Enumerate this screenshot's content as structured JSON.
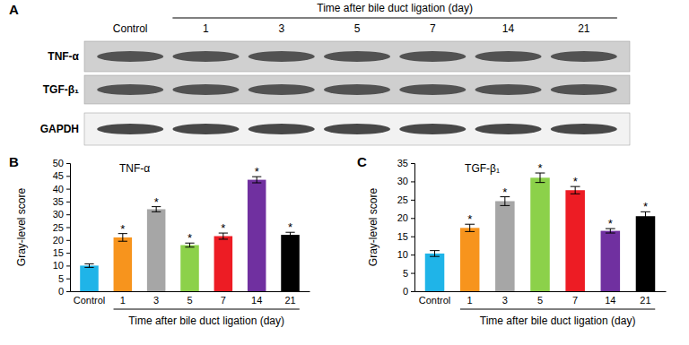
{
  "blot": {
    "panel": "A",
    "header": "Time after bile duct ligation (day)",
    "lanes": [
      "Control",
      "1",
      "3",
      "5",
      "7",
      "14",
      "21"
    ],
    "rows": [
      "TNF-α",
      "TGF-β₁",
      "GAPDH"
    ]
  },
  "chart_data": [
    {
      "type": "bar",
      "panel": "B",
      "title": "TNF-α",
      "y_label": "Gray-level score",
      "x_label": "Time after bile duct ligation (day)",
      "categories": [
        "Control",
        "1",
        "3",
        "5",
        "7",
        "14",
        "21"
      ],
      "values": [
        10,
        21,
        32,
        18,
        21.5,
        43.5,
        22
      ],
      "errors": [
        0.7,
        1.5,
        1,
        0.8,
        1.2,
        1.2,
        1
      ],
      "annotations": [
        null,
        "*",
        "*",
        "*",
        "*",
        "*",
        "*"
      ],
      "colors": [
        "#1fb4e8",
        "#f7941d",
        "#a6a6a6",
        "#8cd14a",
        "#ed1c24",
        "#7030a0",
        "#000000"
      ],
      "ylim": [
        0,
        50
      ],
      "yticks": [
        0,
        5,
        10,
        15,
        20,
        25,
        30,
        35,
        40,
        45,
        50
      ],
      "grid": false
    },
    {
      "type": "bar",
      "panel": "C",
      "title": "TGF-β₁",
      "y_label": "Gray-level score",
      "x_label": "Time after bile duct ligation (day)",
      "categories": [
        "Control",
        "1",
        "3",
        "5",
        "7",
        "14",
        "21"
      ],
      "values": [
        10.3,
        17.3,
        24.6,
        31,
        27.6,
        16.5,
        20.5
      ],
      "errors": [
        0.8,
        1,
        1.2,
        1.3,
        1,
        0.6,
        1.2
      ],
      "annotations": [
        null,
        "*",
        "*",
        "*",
        "*",
        "*",
        "*"
      ],
      "colors": [
        "#1fb4e8",
        "#f7941d",
        "#a6a6a6",
        "#8cd14a",
        "#ed1c24",
        "#7030a0",
        "#000000"
      ],
      "ylim": [
        0,
        35
      ],
      "yticks": [
        0,
        5,
        10,
        15,
        20,
        25,
        30,
        35
      ],
      "grid": false
    }
  ]
}
